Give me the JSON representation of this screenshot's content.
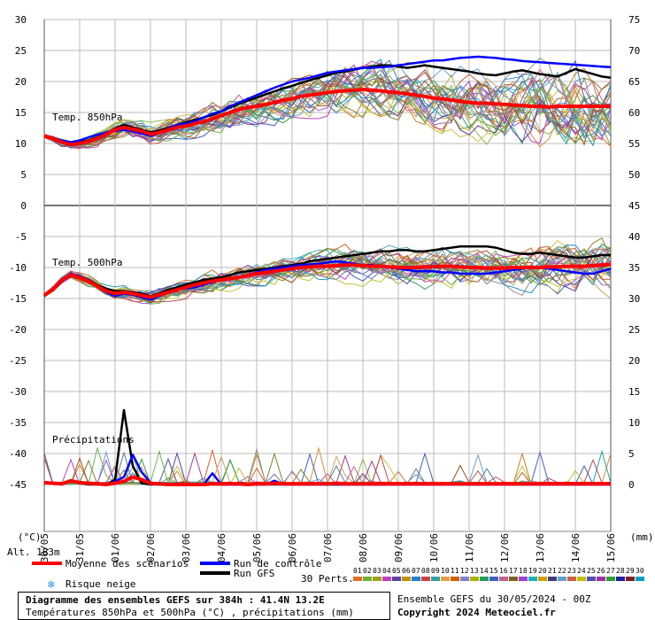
{
  "chart_data": {
    "type": "line",
    "title": "Diagramme des ensembles GEFS sur 384h : 41.4N 13.2E",
    "subtitle": "Températures 850hPa et 500hPa (°C) , précipitations (mm)",
    "run_info": "Ensemble GEFS du 30/05/2024 - 00Z",
    "copyright": "Copyright 2024 Meteociel.fr",
    "altitude_label": "Alt. 183m",
    "y_left_unit": "(°C)",
    "y_right_unit": "(mm)",
    "x_ticks": [
      "30/05",
      "31/05",
      "01/06",
      "02/06",
      "03/06",
      "04/06",
      "05/06",
      "06/06",
      "07/06",
      "08/06",
      "09/06",
      "10/06",
      "11/06",
      "12/06",
      "13/06",
      "14/06",
      "15/06"
    ],
    "left_ticks": [
      "30",
      "25",
      "20",
      "15",
      "10",
      "5",
      "0",
      "-5",
      "-10",
      "-15",
      "-20",
      "-25",
      "-30",
      "-35",
      "-40",
      "-45"
    ],
    "right_ticks_upper": [
      "75",
      "70",
      "65",
      "60",
      "55",
      "50",
      "45"
    ],
    "right_ticks_lower": [
      "40",
      "35",
      "30",
      "25",
      "20",
      "15",
      "10",
      "5",
      "0"
    ],
    "panels": [
      {
        "label": "Temp. 850hPa",
        "mean": [
          11.2,
          10.8,
          10.2,
          9.8,
          10.0,
          10.3,
          10.8,
          11.5,
          12.2,
          12.6,
          12.3,
          12.0,
          11.5,
          11.8,
          12.2,
          12.6,
          12.8,
          13.2,
          13.5,
          14.0,
          14.5,
          15.0,
          15.5,
          15.8,
          16.0,
          16.3,
          16.6,
          17.0,
          17.2,
          17.6,
          17.8,
          18.0,
          18.2,
          18.4,
          18.5,
          18.6,
          18.7,
          18.6,
          18.5,
          18.3,
          18.2,
          18.0,
          17.8,
          17.6,
          17.3,
          17.2,
          17.0,
          16.8,
          16.6,
          16.5,
          16.5,
          16.4,
          16.3,
          16.2,
          16.1,
          16.0,
          16.0,
          15.9,
          16.0,
          16.0,
          16.0,
          16.0,
          16.0,
          16.0,
          16.0
        ],
        "control": [
          11.2,
          10.8,
          10.5,
          10.2,
          10.5,
          11.0,
          11.4,
          11.8,
          12.0,
          12.2,
          12.0,
          11.6,
          11.2,
          11.7,
          12.4,
          13.0,
          13.2,
          13.6,
          14.2,
          14.8,
          15.2,
          16.0,
          16.6,
          17.2,
          17.8,
          18.4,
          19.0,
          19.5,
          20.0,
          20.3,
          20.6,
          21.0,
          21.4,
          21.6,
          21.8,
          22.0,
          22.2,
          22.2,
          22.3,
          22.4,
          22.6,
          22.8,
          23.0,
          23.2,
          23.4,
          23.4,
          23.6,
          23.8,
          23.9,
          24.0,
          23.9,
          23.8,
          23.6,
          23.5,
          23.3,
          23.2,
          23.1,
          23.0,
          22.9,
          22.8,
          22.7,
          22.6,
          22.5,
          22.4,
          22.3
        ],
        "gfs": [
          11.2,
          10.9,
          10.3,
          10.0,
          10.2,
          10.5,
          11.0,
          11.6,
          12.4,
          13.0,
          12.6,
          12.2,
          11.8,
          12.1,
          12.5,
          13.0,
          13.4,
          13.8,
          14.2,
          14.6,
          15.2,
          15.8,
          16.4,
          16.9,
          17.4,
          17.9,
          18.4,
          18.9,
          19.3,
          19.8,
          20.2,
          20.6,
          21.0,
          21.4,
          21.6,
          21.9,
          22.2,
          22.4,
          22.6,
          22.6,
          22.4,
          22.2,
          22.4,
          22.6,
          22.4,
          22.2,
          22.0,
          21.8,
          21.6,
          21.3,
          21.1,
          21.0,
          21.3,
          21.6,
          21.8,
          21.5,
          21.2,
          21.0,
          20.8,
          21.4,
          22.0,
          21.6,
          21.2,
          20.8,
          20.6
        ]
      },
      {
        "label": "Temp. 500hPa",
        "mean": [
          -14.5,
          -13.5,
          -12.0,
          -11.2,
          -11.6,
          -12.2,
          -13.0,
          -13.8,
          -14.2,
          -14.0,
          -14.2,
          -14.5,
          -14.8,
          -14.4,
          -14.0,
          -13.6,
          -13.2,
          -12.8,
          -12.5,
          -12.2,
          -12.0,
          -11.8,
          -11.6,
          -11.3,
          -11.0,
          -10.8,
          -10.6,
          -10.4,
          -10.2,
          -10.0,
          -9.9,
          -9.8,
          -9.8,
          -9.7,
          -9.6,
          -9.6,
          -9.7,
          -9.8,
          -9.8,
          -9.9,
          -10.0,
          -10.0,
          -10.0,
          -9.9,
          -9.9,
          -9.8,
          -9.8,
          -9.9,
          -10.0,
          -10.0,
          -10.1,
          -10.1,
          -10.1,
          -10.0,
          -10.0,
          -10.0,
          -10.0,
          -9.9,
          -9.9,
          -9.8,
          -9.8,
          -9.8,
          -9.7,
          -9.6,
          -9.5
        ],
        "control": [
          -14.6,
          -13.4,
          -12.0,
          -11.0,
          -11.4,
          -12.0,
          -13.0,
          -14.0,
          -14.6,
          -14.2,
          -14.4,
          -14.8,
          -15.2,
          -14.6,
          -14.0,
          -13.6,
          -13.4,
          -13.2,
          -12.8,
          -12.4,
          -12.0,
          -11.8,
          -11.6,
          -11.2,
          -10.8,
          -10.4,
          -10.2,
          -10.0,
          -9.8,
          -9.6,
          -9.5,
          -9.4,
          -9.2,
          -9.0,
          -9.2,
          -9.4,
          -9.6,
          -9.6,
          -9.8,
          -10.0,
          -10.2,
          -10.4,
          -10.6,
          -10.6,
          -10.6,
          -10.8,
          -10.8,
          -11.0,
          -11.0,
          -11.0,
          -11.0,
          -10.8,
          -10.6,
          -10.4,
          -10.2,
          -10.0,
          -10.0,
          -10.2,
          -10.4,
          -10.6,
          -10.8,
          -11.0,
          -11.0,
          -10.6,
          -10.2
        ],
        "gfs": [
          -14.6,
          -13.6,
          -12.2,
          -11.2,
          -11.4,
          -12.0,
          -12.8,
          -13.4,
          -13.8,
          -13.8,
          -14.0,
          -14.2,
          -14.6,
          -14.2,
          -13.6,
          -13.2,
          -12.8,
          -12.4,
          -12.0,
          -11.8,
          -11.6,
          -11.2,
          -10.8,
          -10.6,
          -10.4,
          -10.2,
          -10.0,
          -9.8,
          -9.6,
          -9.4,
          -9.0,
          -8.8,
          -8.6,
          -8.4,
          -8.2,
          -8.0,
          -7.8,
          -7.6,
          -7.4,
          -7.4,
          -7.2,
          -7.2,
          -7.4,
          -7.4,
          -7.2,
          -7.0,
          -6.8,
          -6.6,
          -6.6,
          -6.6,
          -6.6,
          -6.8,
          -7.2,
          -7.6,
          -7.8,
          -7.8,
          -7.6,
          -7.8,
          -8.0,
          -8.2,
          -8.4,
          -8.4,
          -8.2,
          -8.0,
          -8.0
        ]
      },
      {
        "label": "Précipitations",
        "mean": [
          0.3,
          0.2,
          0.1,
          0.6,
          0.3,
          0.2,
          0.1,
          0.0,
          0.2,
          0.5,
          1.2,
          0.8,
          0.2,
          0.1,
          0.0,
          0.0,
          0.0,
          0.0,
          0.0,
          0.1,
          0.1,
          0.1,
          0.1,
          0.0,
          0.1,
          0.1,
          0.2,
          0.1,
          0.1,
          0.1,
          0.1,
          0.1,
          0.1,
          0.2,
          0.1,
          0.1,
          0.1,
          0.1,
          0.1,
          0.1,
          0.1,
          0.1,
          0.1,
          0.1,
          0.1,
          0.1,
          0.1,
          0.1,
          0.1,
          0.1,
          0.1,
          0.1,
          0.1,
          0.1,
          0.1,
          0.1,
          0.1,
          0.1,
          0.1,
          0.1,
          0.1,
          0.1,
          0.1,
          0.1,
          0.1
        ],
        "control": [
          0.4,
          0.2,
          0.0,
          0.6,
          0.4,
          0.1,
          0.0,
          0.0,
          0.5,
          1.2,
          4.8,
          2.0,
          0.3,
          0.0,
          0.0,
          0.0,
          0.0,
          0.0,
          0.0,
          1.8,
          0.0,
          0.0,
          0.0,
          0.0,
          0.0,
          0.0,
          0.6,
          0.0,
          0.0,
          0.0,
          0.0,
          0.0,
          0.0,
          0.0,
          0.0,
          0.0,
          0.0,
          0.0,
          0.0,
          0.0,
          0.0,
          0.0,
          0.0,
          0.0,
          0.0,
          0.0,
          0.0,
          0.0,
          0.0,
          0.0,
          0.0,
          0.0,
          0.0,
          0.0,
          0.0,
          0.0,
          0.0,
          0.0,
          0.0,
          0.0,
          0.0,
          0.0,
          0.0,
          0.0,
          0.0
        ],
        "gfs": [
          0.2,
          0.1,
          0.0,
          0.5,
          0.2,
          0.0,
          0.0,
          0.0,
          0.8,
          12.0,
          3.0,
          0.2,
          0.0,
          0.0,
          0.0,
          0.0,
          0.0,
          0.0,
          0.0,
          0.0,
          0.0,
          0.0,
          0.0,
          0.0,
          0.0,
          0.0,
          0.0,
          0.0,
          0.0,
          0.0,
          0.0,
          0.0,
          0.0,
          0.0,
          0.0,
          0.0,
          0.0,
          0.0,
          0.0,
          0.0,
          0.0,
          0.0,
          0.0,
          0.0,
          0.0,
          0.0,
          0.0,
          0.0,
          0.0,
          0.0,
          0.0,
          0.0,
          0.0,
          0.0,
          0.0,
          0.0,
          0.0,
          0.0,
          0.0,
          0.0,
          0.0,
          0.0,
          0.0,
          0.0,
          0.0
        ]
      }
    ],
    "pert_colors": [
      "#d4903a",
      "#8fba4e",
      "#6a9fd0",
      "#c07a3a",
      "#9a5cc8",
      "#d0c040",
      "#30a070",
      "#c05050",
      "#4060c0",
      "#d08020",
      "#50b0b0",
      "#a04080",
      "#b0b040",
      "#2090d0",
      "#e06030",
      "#808030",
      "#5080a0",
      "#c040c0",
      "#3a9a3a",
      "#d0a060",
      "#7070d0",
      "#b06030",
      "#20a0a0",
      "#d06090",
      "#909090",
      "#6040a0",
      "#c0c030",
      "#4090c0",
      "#a05020",
      "#70b050"
    ]
  },
  "legend": {
    "mean_label": "Moyenne des scénarios",
    "control_label": "Run de contrôle",
    "gfs_label": "Run GFS",
    "snow_label": "Risque neige",
    "perts_label": "30 Perts.",
    "mean_color": "#ff0000",
    "control_color": "#0000ff",
    "gfs_color": "#000000",
    "pert_numbers": [
      "01",
      "02",
      "03",
      "04",
      "05",
      "06",
      "07",
      "08",
      "09",
      "10",
      "11",
      "12",
      "13",
      "14",
      "15",
      "16",
      "17",
      "18",
      "19",
      "20",
      "21",
      "22",
      "23",
      "24",
      "25",
      "26",
      "27",
      "28",
      "29",
      "30"
    ],
    "pert_swatches": [
      "#e07020",
      "#70b030",
      "#a0a020",
      "#c040c0",
      "#6040a0",
      "#c09000",
      "#2080d0",
      "#d04040",
      "#30a0a0",
      "#e0a040",
      "#d06000",
      "#8080d0",
      "#b0b000",
      "#20a060",
      "#4060c0",
      "#c06090",
      "#806020",
      "#a040d0",
      "#20b0b0",
      "#d0a000",
      "#404080",
      "#60a0d0",
      "#d06040",
      "#c0c000",
      "#5050b0",
      "#a030a0",
      "#30a030",
      "#2020a0",
      "#802020",
      "#00a0c0"
    ]
  }
}
